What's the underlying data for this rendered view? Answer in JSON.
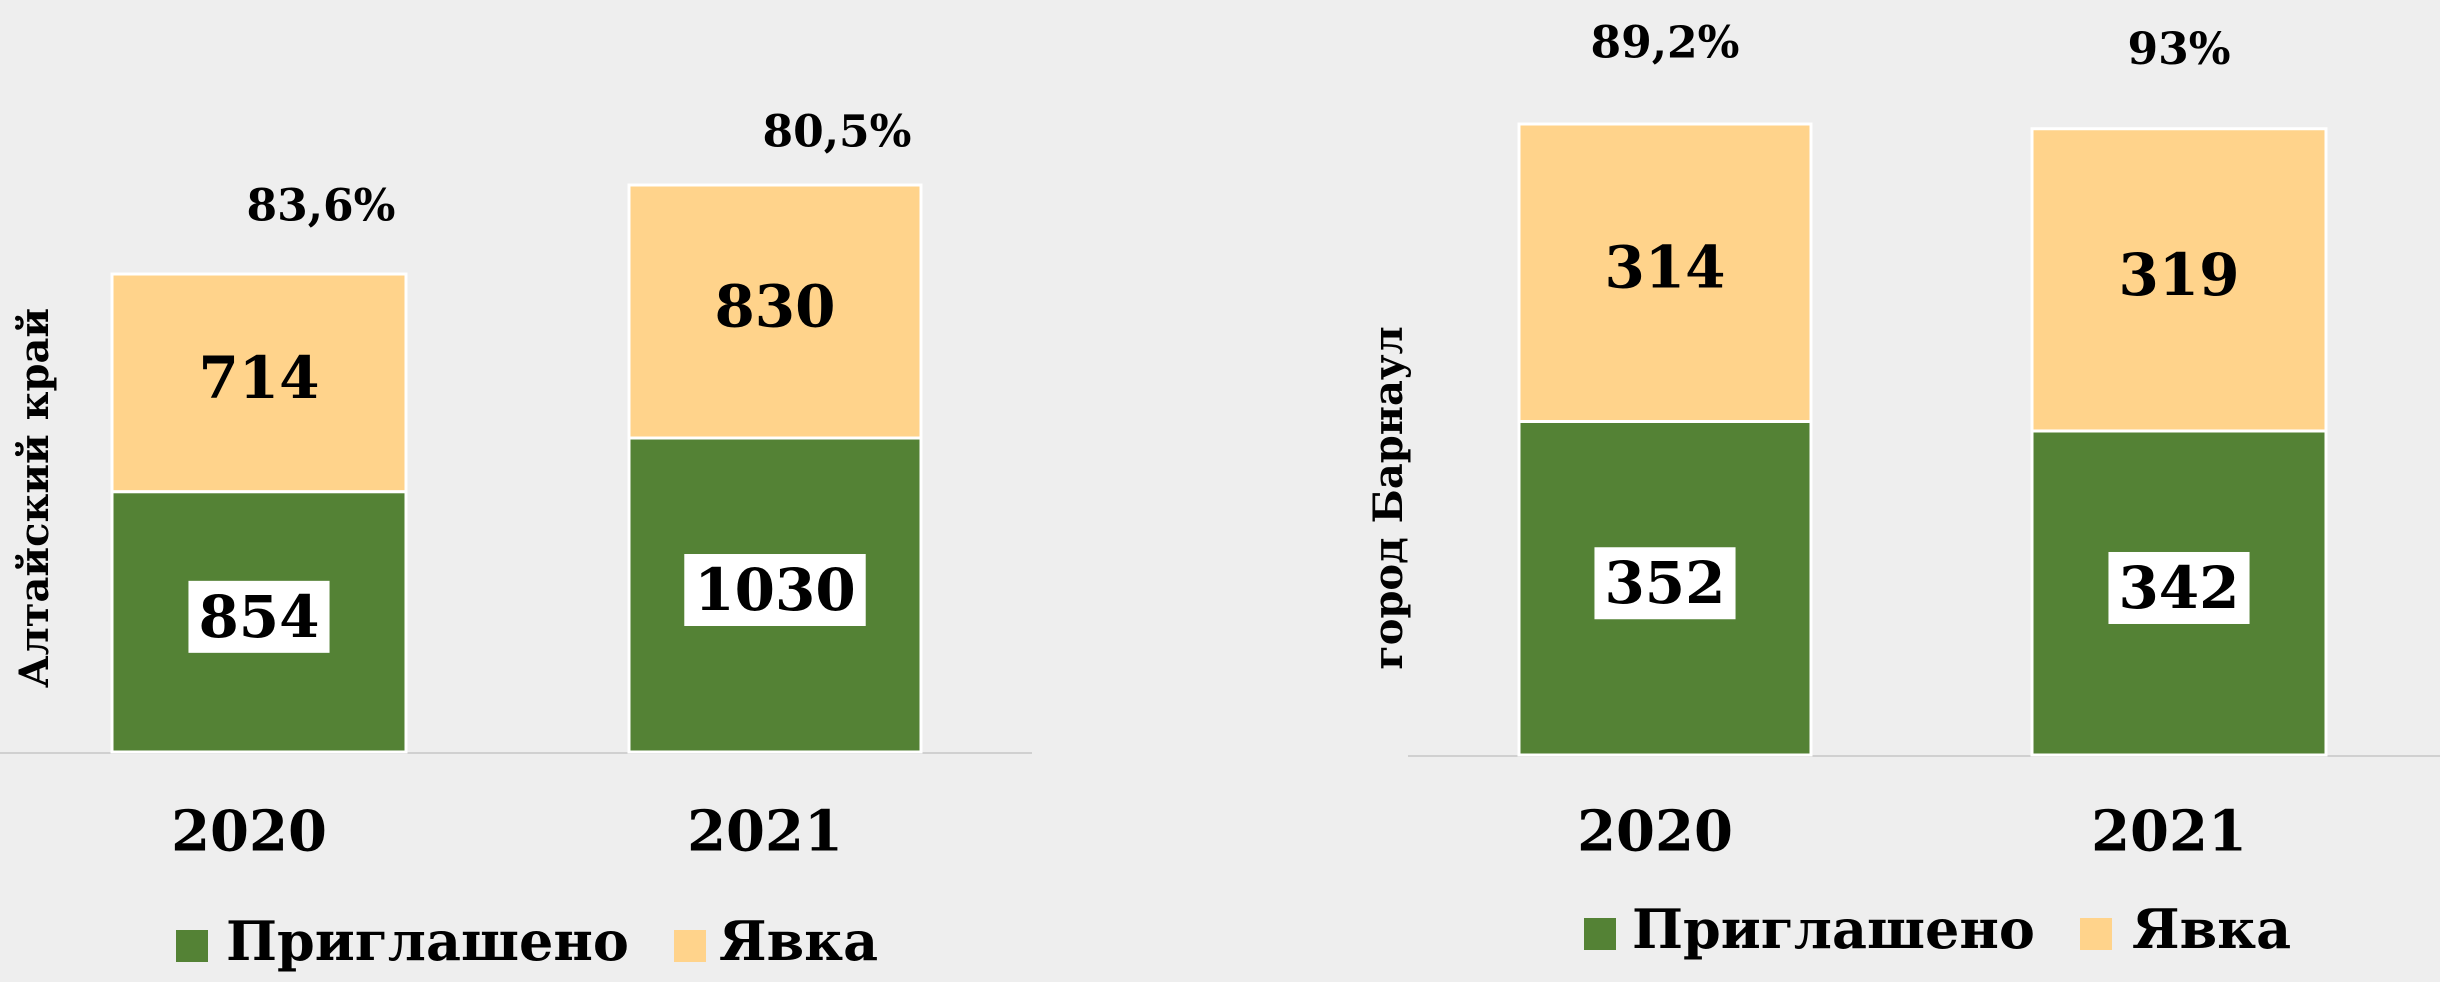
{
  "chart_data": [
    {
      "type": "stacked-bar",
      "y_label": "Алтайский край",
      "categories": [
        "2020",
        "2021"
      ],
      "series": [
        {
          "name": "Приглашено",
          "color": "#548235",
          "values": [
            854,
            1030
          ]
        },
        {
          "name": "Явка",
          "color": "#ffd38b",
          "values": [
            714,
            830
          ]
        }
      ],
      "annotations": [
        "83,6%",
        "80,5%"
      ]
    },
    {
      "type": "stacked-bar",
      "y_label": "город Барнаул",
      "categories": [
        "2020",
        "2021"
      ],
      "series": [
        {
          "name": "Приглашено",
          "color": "#548235",
          "values": [
            352,
            342
          ]
        },
        {
          "name": "Явка",
          "color": "#ffd38b",
          "values": [
            314,
            319
          ]
        }
      ],
      "annotations": [
        "89,2%",
        "93%"
      ]
    }
  ]
}
